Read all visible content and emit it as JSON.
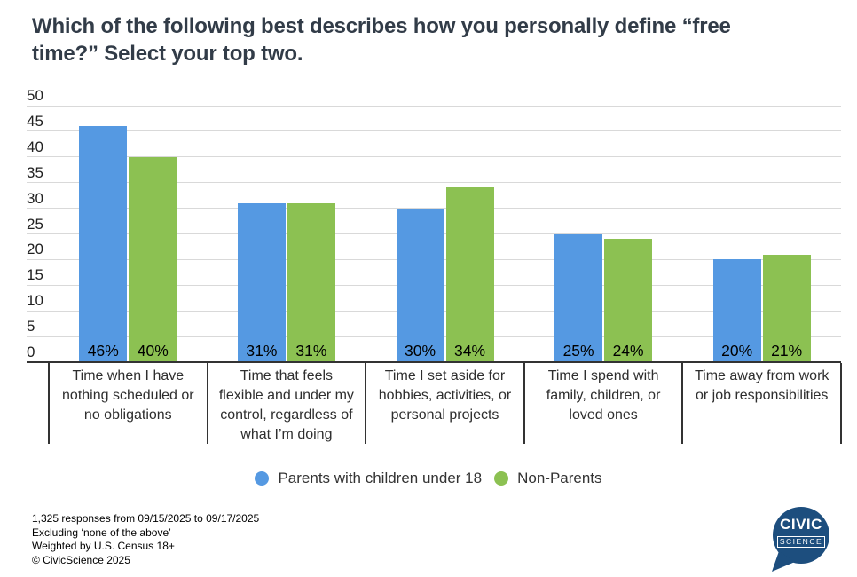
{
  "title": "Which of the following best describes how you personally define “free\ntime?” Select your top two.",
  "colors": {
    "parents_blue": "#5599e2",
    "nonparents_green": "#8cc152",
    "grid": "#d9d9d9",
    "axis": "#333333",
    "title_text": "#323c48",
    "logo_navy": "#1d4e7e",
    "background": "#ffffff"
  },
  "chart_data": {
    "type": "bar",
    "categories": [
      "Time when I have\nnothing scheduled or\nno obligations",
      "Time that feels\nflexible and under my\ncontrol, regardless of\nwhat I’m doing",
      "Time I set aside for\nhobbies, activities, or\npersonal projects",
      "Time I spend with\nfamily, children, or\nloved ones",
      "Time away from work\nor job responsibilities"
    ],
    "series": [
      {
        "name": "Parents with children under 18",
        "color": "#5599e2",
        "values": [
          46,
          31,
          30,
          25,
          20
        ]
      },
      {
        "name": "Non-Parents",
        "color": "#8cc152",
        "values": [
          40,
          31,
          34,
          24,
          21
        ]
      }
    ],
    "value_suffix": "%",
    "ylim": [
      0,
      50
    ],
    "ytick_step": 5,
    "yticks": [
      0,
      5,
      10,
      15,
      20,
      25,
      30,
      35,
      40,
      45,
      50
    ],
    "grid": true,
    "legend_position": "bottom",
    "bar_label_position": "inside-bottom"
  },
  "footer": {
    "lines": [
      "1,325 responses from 09/15/2025 to 09/17/2025",
      "Excluding ‘none of the above’",
      "Weighted by U.S. Census 18+",
      "© CivicScience 2025"
    ]
  },
  "logo": {
    "line1": "CIVIC",
    "line2": "SCIENCE",
    "color": "#1d4e7e",
    "text_color": "#ffffff"
  }
}
